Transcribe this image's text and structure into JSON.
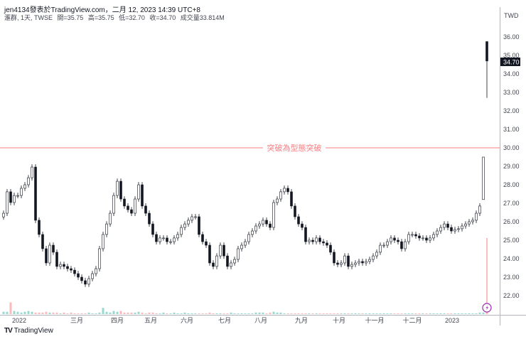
{
  "header": {
    "published": "jen4134發表於TradingView.com，二月 12, 2023 14:39 UTC+8",
    "symbol": "滙群, 1天, TWSE",
    "open": "開=35.75",
    "high": "高=35.75",
    "low": "低=32.70",
    "close": "收=34.70",
    "volume": "成交量33.814M"
  },
  "footer": {
    "brand": "TradingView",
    "logo_icon": "tradingview-logo-icon"
  },
  "colors": {
    "line": "#f77c80",
    "candle": "#131722",
    "vol_up": "#f7a9a7",
    "vol_down": "#7fcfc4",
    "alert": "#9c27b0",
    "price_tag_bg": "#131722"
  },
  "chart_data": {
    "type": "candlestick",
    "currency": "TWD",
    "y_ticks": [
      "36.00",
      "35.00",
      "34.00",
      "33.00",
      "32.00",
      "31.00",
      "30.00",
      "29.00",
      "28.00",
      "27.00",
      "26.00",
      "25.00",
      "24.00",
      "23.00",
      "22.00"
    ],
    "ylim": [
      21,
      36.5
    ],
    "x_ticks": [
      "2022",
      "三月",
      "四月",
      "五月",
      "六月",
      "七月",
      "八月",
      "九月",
      "十月",
      "十一月",
      "十二月",
      "2023"
    ],
    "last_price": "34.70",
    "horizontal_line": {
      "price": 30.0,
      "label": "突破為型態突破"
    },
    "closes": [
      26.46,
      27.62,
      27.04,
      27.42,
      27.42,
      27.81,
      28.0,
      28.38,
      28.96,
      26.08,
      25.31,
      24.54,
      23.77,
      24.73,
      24.35,
      23.58,
      23.69,
      23.58,
      23.46,
      23.38,
      23.19,
      23.0,
      22.81,
      22.62,
      22.92,
      23.19,
      23.46,
      24.54,
      25.31,
      25.88,
      26.46,
      27.42,
      28.19,
      27.23,
      26.85,
      26.65,
      26.46,
      27.23,
      28.0,
      26.85,
      26.46,
      25.88,
      25.31,
      24.92,
      25.12,
      25.12,
      24.92,
      24.92,
      25.12,
      25.31,
      25.69,
      25.88,
      26.08,
      26.27,
      26.27,
      25.31,
      24.92,
      24.73,
      23.77,
      23.58,
      24.15,
      24.73,
      24.15,
      23.58,
      23.77,
      23.96,
      24.54,
      24.73,
      24.92,
      25.31,
      25.5,
      25.77,
      25.88,
      26.08,
      25.88,
      25.69,
      27.04,
      27.23,
      27.62,
      27.81,
      27.62,
      26.85,
      26.27,
      25.88,
      25.69,
      24.92,
      25.0,
      24.92,
      25.12,
      24.92,
      24.85,
      24.73,
      24.35,
      23.77,
      23.69,
      23.77,
      24.15,
      23.58,
      23.69,
      23.77,
      23.85,
      23.77,
      23.85,
      23.96,
      24.15,
      24.35,
      24.73,
      24.73,
      24.92,
      25.12,
      25.0,
      24.92,
      24.54,
      24.92,
      25.31,
      25.31,
      25.23,
      25.12,
      25.12,
      25.0,
      25.12,
      25.31,
      25.5,
      25.69,
      25.88,
      25.69,
      25.5,
      25.58,
      25.62,
      25.77,
      25.88,
      26.0,
      26.08,
      26.46,
      26.85
    ],
    "last_candles": [
      {
        "open": 27.2,
        "high": 29.5,
        "low": 27.2,
        "close": 29.5
      },
      {
        "open": 35.75,
        "high": 35.75,
        "low": 32.7,
        "close": 34.7
      }
    ],
    "volume_m": [
      3,
      3,
      15,
      4,
      3,
      2,
      3,
      4,
      3,
      2,
      2,
      2,
      3,
      2,
      2,
      2,
      1,
      2,
      1,
      2,
      1,
      1,
      1,
      1,
      2,
      1,
      1,
      2,
      8,
      3,
      2,
      4,
      3,
      4,
      2,
      2,
      2,
      2,
      3,
      2,
      1,
      2,
      2,
      1,
      1,
      2,
      1,
      1,
      2,
      1,
      1,
      2,
      1,
      1,
      1,
      1,
      1,
      1,
      2,
      1,
      1,
      1,
      1,
      1,
      2,
      1,
      1,
      1,
      1,
      1,
      1,
      2,
      2,
      2,
      1,
      2,
      3,
      2,
      2,
      1,
      1,
      1,
      1,
      1,
      1,
      1,
      1,
      1,
      1,
      1,
      1,
      1,
      1,
      1,
      1,
      1,
      1,
      1,
      1,
      1,
      1,
      1,
      1,
      1,
      1,
      1,
      1,
      1,
      1,
      1,
      1,
      1,
      1,
      1,
      1,
      1,
      1,
      1,
      1,
      1,
      1,
      1,
      1,
      1,
      1,
      1,
      1,
      1,
      1,
      1,
      1,
      1,
      1,
      1,
      2,
      2,
      3,
      33.8
    ]
  }
}
